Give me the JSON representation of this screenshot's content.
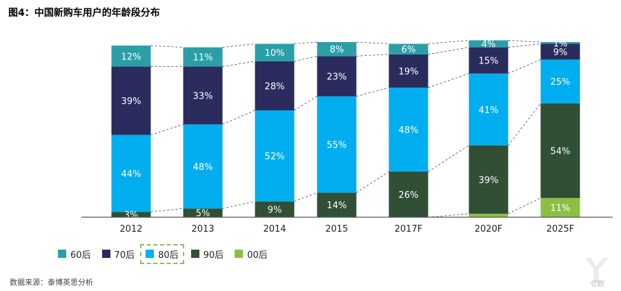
{
  "title": "图4：中国新购车用户的年龄段分布",
  "source": "数据来源：泰博英思分析",
  "watermark": "亿欧",
  "chart_data": {
    "type": "bar",
    "stacked": true,
    "percent": true,
    "categories": [
      "2012",
      "2013",
      "2014",
      "2015",
      "2017F",
      "2020F",
      "2025F"
    ],
    "series": [
      {
        "name": "00后",
        "color": "#8cbf45",
        "values": [
          0,
          0,
          0,
          0,
          0,
          2,
          11
        ],
        "labels": [
          "",
          "",
          "",
          "",
          "",
          "",
          "11%"
        ]
      },
      {
        "name": "90后",
        "color": "#304f35",
        "values": [
          3,
          5,
          9,
          14,
          26,
          39,
          54
        ],
        "labels": [
          "3%",
          "5%",
          "9%",
          "14%",
          "26%",
          "39%",
          "54%"
        ]
      },
      {
        "name": "80后",
        "color": "#00aeef",
        "values": [
          44,
          48,
          52,
          55,
          48,
          41,
          25
        ],
        "labels": [
          "44%",
          "48%",
          "52%",
          "55%",
          "48%",
          "41%",
          "25%"
        ]
      },
      {
        "name": "70后",
        "color": "#2a2c5e",
        "values": [
          39,
          33,
          28,
          23,
          19,
          15,
          9
        ],
        "labels": [
          "39%",
          "33%",
          "28%",
          "23%",
          "19%",
          "15%",
          "9%"
        ]
      },
      {
        "name": "60后",
        "color": "#2a9fa8",
        "values": [
          12,
          11,
          10,
          8,
          6,
          4,
          1
        ],
        "labels": [
          "12%",
          "11%",
          "10%",
          "8%",
          "6%",
          "4%",
          "1%"
        ]
      }
    ],
    "legend": {
      "order": [
        "60后",
        "70后",
        "80后",
        "90后",
        "00后"
      ],
      "highlighted": "80后",
      "placement": "bottom-left"
    },
    "connector_lines": "dashed",
    "ylim": [
      0,
      100
    ]
  }
}
